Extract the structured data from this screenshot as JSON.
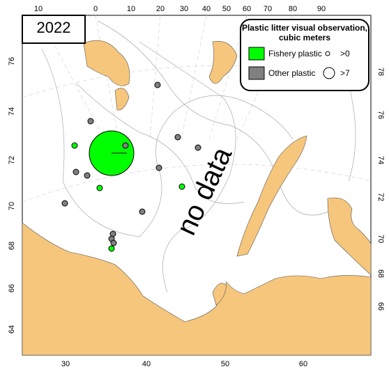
{
  "year": "2022",
  "legend": {
    "title": "Plastic litter visual observation, cubic meters",
    "items": [
      {
        "label": "Fishery plastic",
        "color": "#00ff00"
      },
      {
        "label": "Other plastic",
        "color": "#808080"
      }
    ],
    "sizes": [
      ">0",
      ">7"
    ]
  },
  "annotation": "no data",
  "graticule": {
    "top": [
      10,
      0,
      10,
      20,
      30,
      40,
      50,
      60,
      70,
      80,
      90
    ],
    "bottom": [
      30,
      40,
      50,
      60
    ],
    "left": [
      76,
      74,
      72,
      70,
      68,
      66,
      64
    ],
    "right": [
      78,
      76,
      74,
      72,
      70,
      68,
      66
    ]
  }
}
